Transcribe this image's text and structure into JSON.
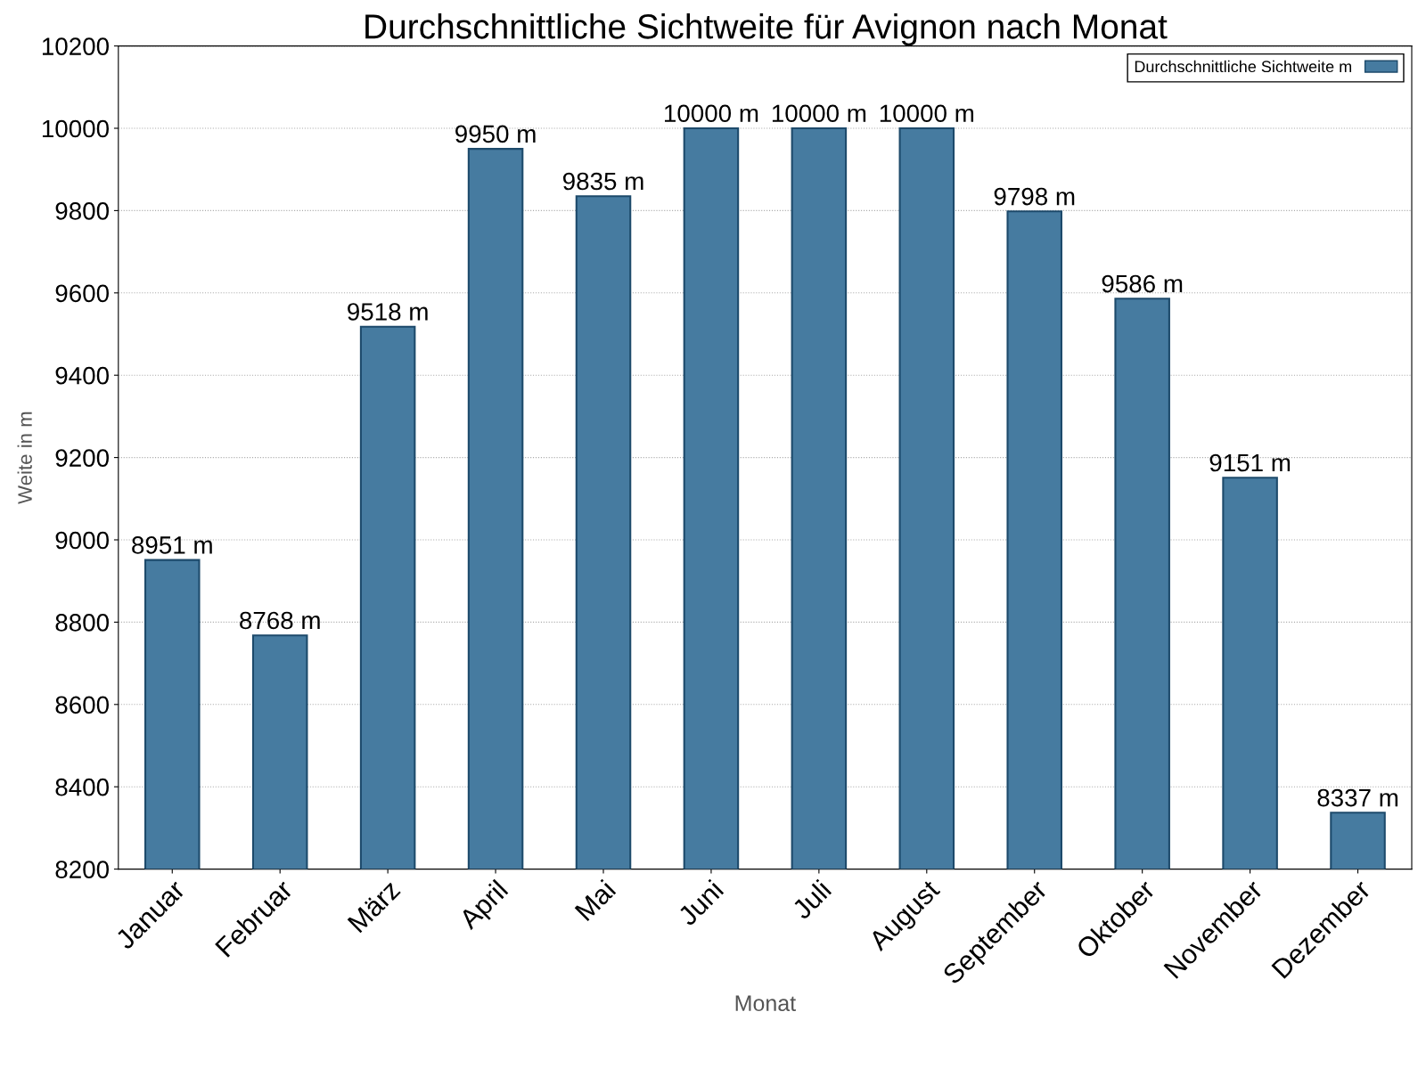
{
  "chart_data": {
    "type": "bar",
    "title": "Durchschnittliche Sichtweite für Avignon nach Monat",
    "xlabel": "Monat",
    "ylabel": "Weite in m",
    "categories": [
      "Januar",
      "Februar",
      "März",
      "April",
      "Mai",
      "Juni",
      "Juli",
      "August",
      "September",
      "Oktober",
      "November",
      "Dezember"
    ],
    "series": [
      {
        "name": "Durchschnittliche Sichtweite m",
        "color": "#467ba0",
        "values": [
          8951,
          8768,
          9518,
          9950,
          9835,
          10000,
          10000,
          10000,
          9798,
          9586,
          9151,
          8337
        ],
        "value_labels": [
          "8951 m",
          "8768 m",
          "9518 m",
          "9950 m",
          "9835 m",
          "10000 m",
          "10000 m",
          "10000 m",
          "9798 m",
          "9586 m",
          "9151 m",
          "8337 m"
        ]
      }
    ],
    "ylim": [
      8200,
      10200
    ],
    "yticks": [
      8200,
      8400,
      8600,
      8800,
      9000,
      9200,
      9400,
      9600,
      9800,
      10000,
      10200
    ],
    "grid": "y",
    "legend": "top right"
  }
}
